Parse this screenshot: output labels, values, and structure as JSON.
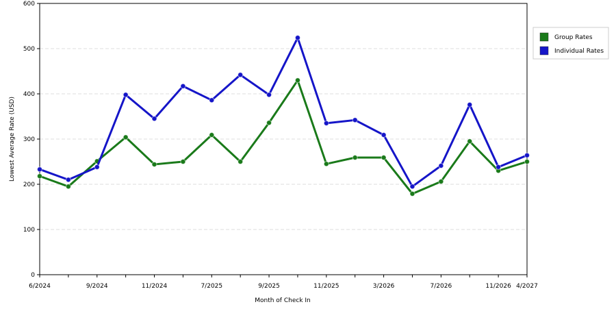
{
  "chart_data": {
    "type": "line",
    "x_label": "Month of Check In",
    "y_label": "Lowest Average Rate (USD)",
    "categories": [
      "6/2024",
      null,
      "9/2024",
      null,
      "11/2024",
      null,
      "7/2025",
      null,
      "9/2025",
      null,
      "11/2025",
      null,
      "3/2026",
      null,
      "7/2026",
      null,
      "11/2026",
      "4/2027"
    ],
    "series": [
      {
        "name": "Group Rates",
        "color": "#1a7a1a",
        "values": [
          218,
          195,
          251,
          304,
          244,
          250,
          309,
          250,
          336,
          430,
          245,
          259,
          259,
          179,
          206,
          295,
          230,
          250
        ]
      },
      {
        "name": "Individual Rates",
        "color": "#1515c8",
        "values": [
          233,
          210,
          238,
          398,
          345,
          417,
          386,
          442,
          398,
          524,
          335,
          342,
          309,
          195,
          241,
          376,
          238,
          264
        ]
      }
    ],
    "ylim": [
      0,
      600
    ],
    "yticks": [
      0,
      100,
      200,
      300,
      400,
      500,
      600
    ],
    "grid": true
  }
}
